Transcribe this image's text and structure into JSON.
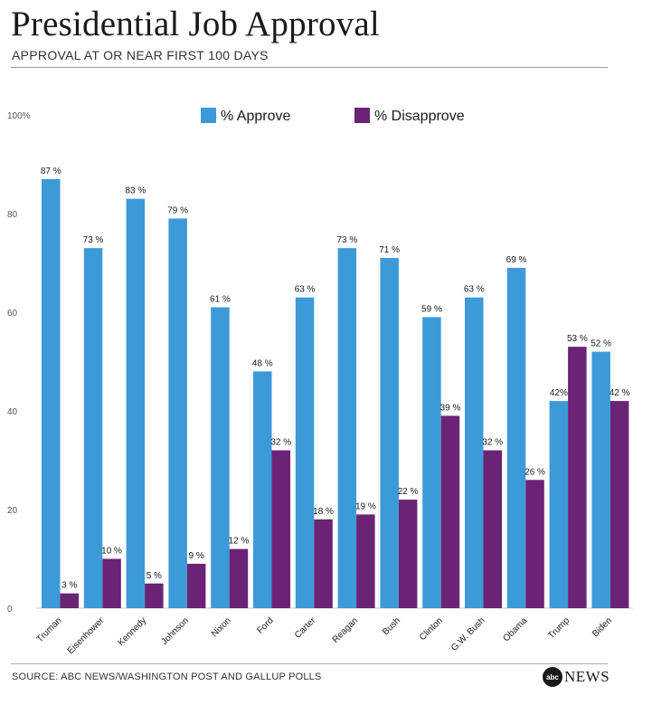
{
  "header": {
    "title": "Presidential Job Approval",
    "subtitle": "APPROVAL AT OR NEAR FIRST 100 DAYS"
  },
  "footer": {
    "source": "SOURCE: ABC NEWS/WASHINGTON POST AND GALLUP POLLS",
    "logo_badge": "abc",
    "logo_text": "NEWS"
  },
  "colors": {
    "approve": "#3d9ad9",
    "disapprove": "#6b2374",
    "axis_text": "#555555"
  },
  "chart_data": {
    "type": "bar",
    "title": "Presidential Job Approval",
    "subtitle": "APPROVAL AT OR NEAR FIRST 100 DAYS",
    "categories": [
      "Truman",
      "Eisenhower",
      "Kennedy",
      "Johnson",
      "Nixon",
      "Ford",
      "Carter",
      "Reagan",
      "Bush",
      "Clinton",
      "G.W. Bush",
      "Obama",
      "Trump",
      "Biden"
    ],
    "series": [
      {
        "name": "% Approve",
        "values": [
          87,
          73,
          83,
          79,
          61,
          48,
          63,
          73,
          71,
          59,
          63,
          69,
          42,
          52
        ],
        "labels": [
          "87 %",
          "73 %",
          "83 %",
          "79 %",
          "61 %",
          "48 %",
          "63 %",
          "73 %",
          "71 %",
          "59 %",
          "63 %",
          "69 %",
          "42%",
          "52 %"
        ]
      },
      {
        "name": "% Disapprove",
        "values": [
          3,
          10,
          5,
          9,
          12,
          32,
          18,
          19,
          22,
          39,
          32,
          26,
          53,
          42
        ],
        "labels": [
          "3 %",
          "10 %",
          "5 %",
          "9 %",
          "12 %",
          "32 %",
          "18 %",
          "19 %",
          "22 %",
          "39 %",
          "32 %",
          "26 %",
          "53 %",
          "42 %"
        ]
      }
    ],
    "ylim": [
      0,
      100
    ],
    "yticks": [
      0,
      20,
      40,
      60,
      80,
      100
    ],
    "ytick_labels": [
      "0",
      "20",
      "40",
      "60",
      "80",
      "100%"
    ],
    "xlabel": "",
    "ylabel": "",
    "legend": "top-center",
    "grid": false
  }
}
